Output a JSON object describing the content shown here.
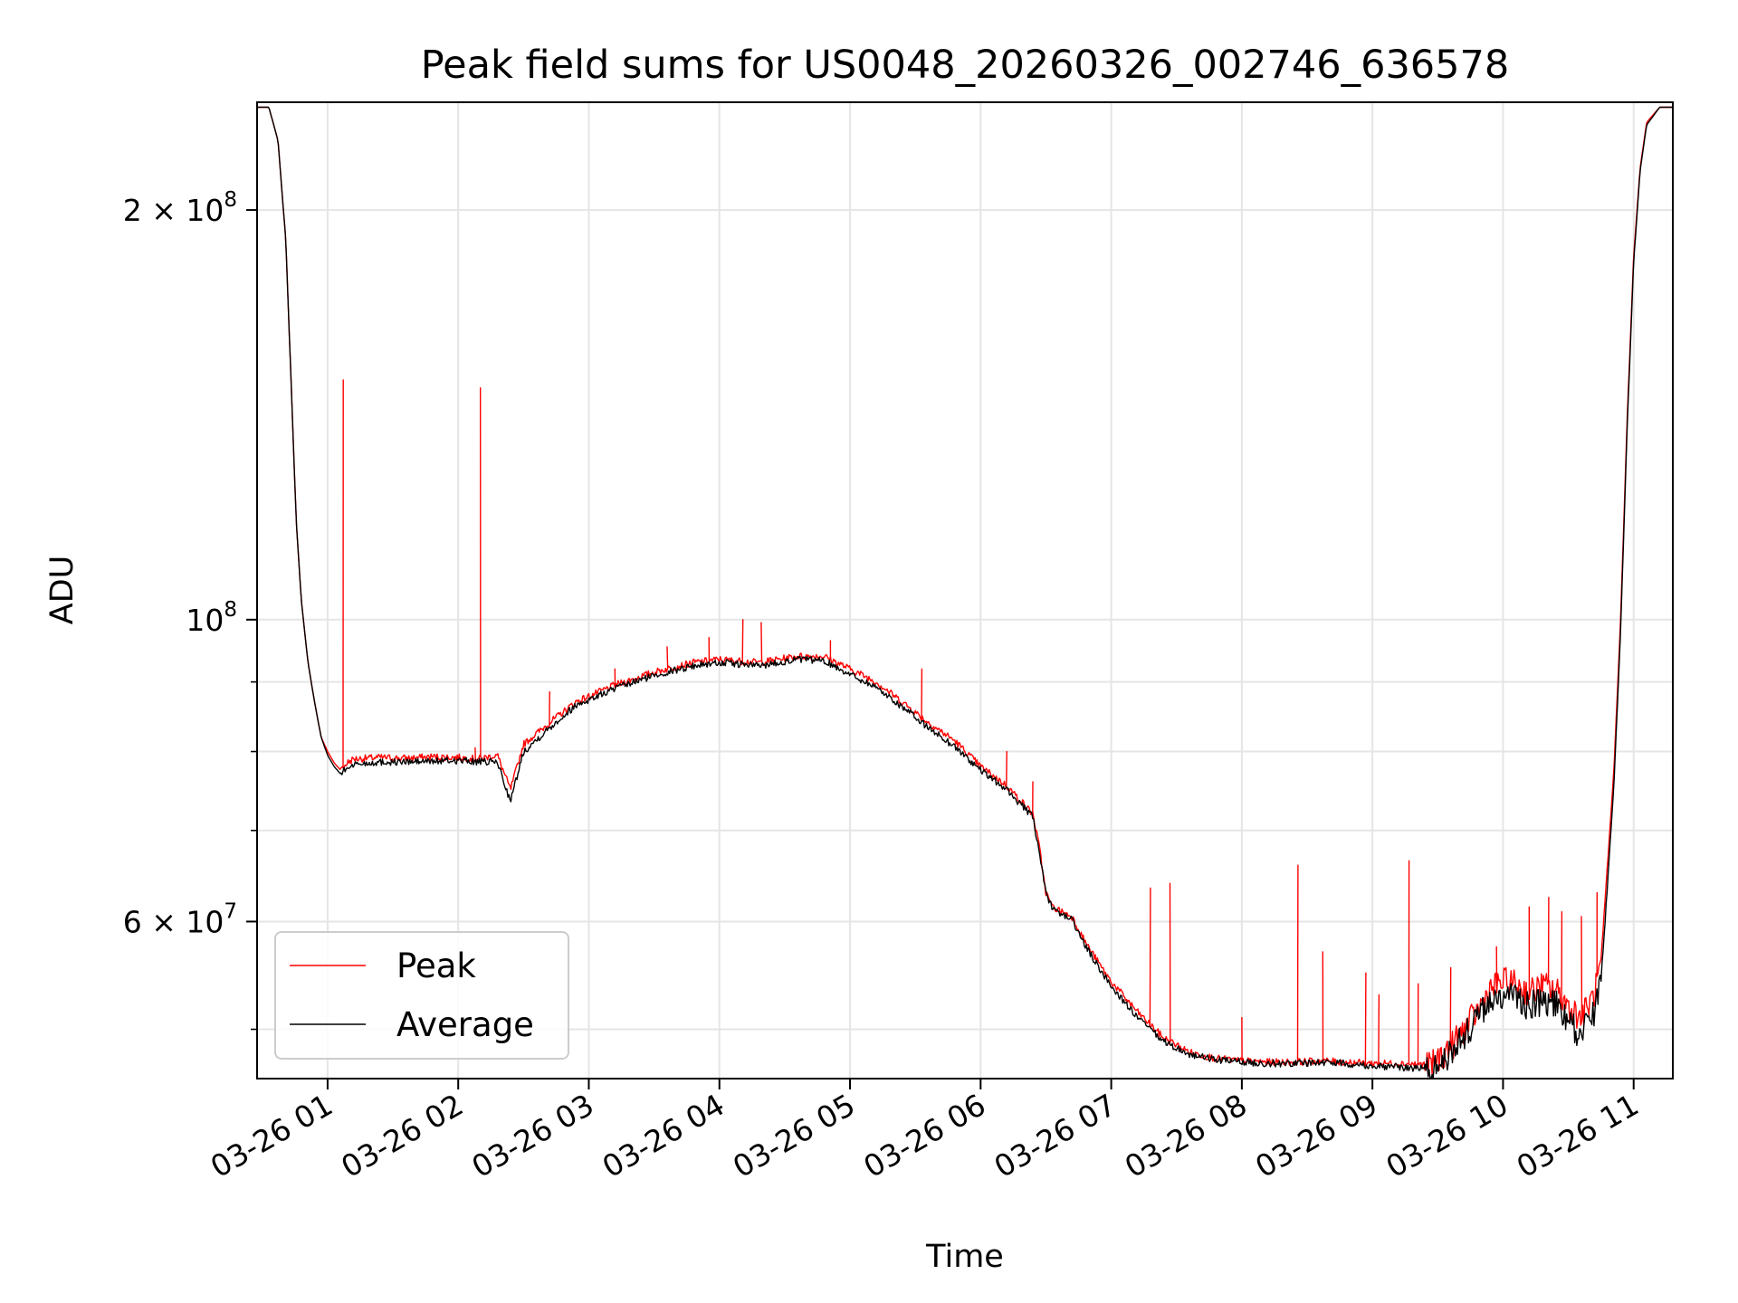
{
  "chart_data": {
    "type": "line",
    "title": "Peak field sums for US0048_20260326_002746_636578",
    "xlabel": "Time",
    "ylabel": "ADU",
    "yscale": "log",
    "ylim": [
      46000000,
      240000000
    ],
    "xlim_hours": [
      0.46,
      11.3
    ],
    "grid": true,
    "legend_location": "lower-left",
    "x_ticks": [
      {
        "hour": 1,
        "label": "03-26 01"
      },
      {
        "hour": 2,
        "label": "03-26 02"
      },
      {
        "hour": 3,
        "label": "03-26 03"
      },
      {
        "hour": 4,
        "label": "03-26 04"
      },
      {
        "hour": 5,
        "label": "03-26 05"
      },
      {
        "hour": 6,
        "label": "03-26 06"
      },
      {
        "hour": 7,
        "label": "03-26 07"
      },
      {
        "hour": 8,
        "label": "03-26 08"
      },
      {
        "hour": 9,
        "label": "03-26 09"
      },
      {
        "hour": 10,
        "label": "03-26 10"
      },
      {
        "hour": 11,
        "label": "03-26 11"
      }
    ],
    "y_major_ticks": [
      {
        "value": 60000000,
        "mantissa": "6",
        "exp": "7",
        "has_mantissa": true
      },
      {
        "value": 100000000,
        "mantissa": "",
        "exp": "8",
        "has_mantissa": false
      },
      {
        "value": 200000000,
        "mantissa": "2",
        "exp": "8",
        "has_mantissa": true
      }
    ],
    "y_minor_ticks": [
      50000000,
      70000000,
      80000000,
      90000000,
      300000000
    ],
    "series": [
      {
        "name": "Peak",
        "color": "#ff0000",
        "x_hours": [
          0.46,
          0.55,
          0.62,
          0.68,
          0.72,
          0.76,
          0.8,
          0.85,
          0.9,
          0.95,
          1.0,
          1.05,
          1.1,
          1.15,
          1.2,
          1.4,
          1.6,
          1.8,
          2.0,
          2.15,
          2.3,
          2.4,
          2.5,
          2.7,
          2.9,
          3.2,
          3.5,
          3.8,
          4.0,
          4.3,
          4.6,
          4.8,
          5.0,
          5.2,
          5.4,
          5.6,
          5.8,
          6.0,
          6.2,
          6.4,
          6.45,
          6.5,
          6.55,
          6.7,
          6.8,
          6.9,
          7.0,
          7.2,
          7.4,
          7.6,
          7.8,
          8.0,
          8.2,
          8.4,
          8.6,
          8.8,
          9.0,
          9.2,
          9.4,
          9.45,
          9.5,
          9.6,
          9.7,
          9.8,
          9.9,
          10.0,
          10.1,
          10.2,
          10.3,
          10.4,
          10.5,
          10.6,
          10.7,
          10.75,
          10.8,
          10.85,
          10.9,
          10.95,
          11.0,
          11.05,
          11.1,
          11.2,
          11.3
        ],
        "y": [
          238000000,
          238000000,
          225000000,
          190000000,
          150000000,
          118000000,
          103000000,
          93000000,
          87000000,
          82000000,
          80000000,
          78500000,
          77500000,
          78500000,
          79000000,
          79200000,
          79100000,
          79300000,
          79200000,
          79000000,
          79500000,
          75000000,
          81000000,
          84000000,
          87000000,
          89500000,
          91500000,
          93000000,
          93500000,
          93000000,
          94000000,
          94000000,
          92000000,
          90000000,
          87000000,
          84000000,
          81500000,
          78000000,
          75500000,
          72000000,
          68000000,
          63000000,
          61500000,
          60500000,
          58000000,
          56000000,
          54200000,
          51500000,
          49300000,
          48100000,
          47600000,
          47400000,
          47300000,
          47300000,
          47400000,
          47300000,
          47200000,
          47200000,
          47100000,
          47000000,
          47500000,
          48500000,
          50000000,
          51500000,
          53500000,
          54200000,
          54000000,
          53200000,
          53800000,
          53500000,
          52000000,
          51000000,
          53000000,
          56000000,
          66000000,
          78000000,
          100000000,
          140000000,
          185000000,
          215000000,
          232000000,
          238000000,
          238000000
        ],
        "spikes": [
          [
            1.12,
            150000000
          ],
          [
            2.17,
            148000000
          ],
          [
            2.13,
            80500000
          ],
          [
            2.7,
            88500000
          ],
          [
            3.2,
            92000000
          ],
          [
            3.6,
            95500000
          ],
          [
            3.92,
            97000000
          ],
          [
            4.18,
            100000000
          ],
          [
            4.32,
            99500000
          ],
          [
            4.85,
            96500000
          ],
          [
            5.55,
            92000000
          ],
          [
            6.2,
            80000000
          ],
          [
            6.4,
            76000000
          ],
          [
            7.3,
            63500000
          ],
          [
            7.45,
            64000000
          ],
          [
            8.0,
            51000000
          ],
          [
            8.43,
            66000000
          ],
          [
            8.62,
            57000000
          ],
          [
            8.95,
            55000000
          ],
          [
            9.05,
            53000000
          ],
          [
            9.28,
            66500000
          ],
          [
            9.35,
            54000000
          ],
          [
            9.6,
            55500000
          ],
          [
            9.95,
            57500000
          ],
          [
            10.2,
            61500000
          ],
          [
            10.35,
            62500000
          ],
          [
            10.45,
            61000000
          ],
          [
            10.6,
            60500000
          ],
          [
            10.72,
            63000000
          ]
        ]
      },
      {
        "name": "Average",
        "color": "#000000",
        "x_hours": [
          0.46,
          0.55,
          0.62,
          0.68,
          0.72,
          0.76,
          0.8,
          0.85,
          0.9,
          0.95,
          1.0,
          1.05,
          1.1,
          1.15,
          1.2,
          1.4,
          1.6,
          1.8,
          2.0,
          2.15,
          2.3,
          2.4,
          2.5,
          2.7,
          2.9,
          3.2,
          3.5,
          3.8,
          4.0,
          4.3,
          4.6,
          4.8,
          5.0,
          5.2,
          5.4,
          5.6,
          5.8,
          6.0,
          6.2,
          6.4,
          6.45,
          6.5,
          6.55,
          6.7,
          6.8,
          6.9,
          7.0,
          7.2,
          7.4,
          7.6,
          7.8,
          8.0,
          8.2,
          8.4,
          8.6,
          8.8,
          9.0,
          9.2,
          9.4,
          9.45,
          9.5,
          9.6,
          9.7,
          9.8,
          9.9,
          10.0,
          10.1,
          10.2,
          10.3,
          10.4,
          10.5,
          10.6,
          10.7,
          10.75,
          10.8,
          10.85,
          10.9,
          10.95,
          11.0,
          11.05,
          11.1,
          11.2,
          11.3
        ],
        "y": [
          238000000,
          238000000,
          225000000,
          190000000,
          150000000,
          118000000,
          103000000,
          93000000,
          87000000,
          82000000,
          79500000,
          78000000,
          77000000,
          77800000,
          78300000,
          78600000,
          78600000,
          78700000,
          78800000,
          78600000,
          78600000,
          73500000,
          80000000,
          83300000,
          86500000,
          89000000,
          91000000,
          92500000,
          93000000,
          92500000,
          93500000,
          93300000,
          91200000,
          89200000,
          86300000,
          83300000,
          80700000,
          77500000,
          75000000,
          71600000,
          67500000,
          62800000,
          61300000,
          60200000,
          57600000,
          55600000,
          53800000,
          51000000,
          49000000,
          47900000,
          47500000,
          47300000,
          47200000,
          47200000,
          47300000,
          47200000,
          47000000,
          46900000,
          46800000,
          46700000,
          47000000,
          48000000,
          49500000,
          50800000,
          52500000,
          52800000,
          52800000,
          52000000,
          52500000,
          52300000,
          50500000,
          49500000,
          51500000,
          54500000,
          64000000,
          76000000,
          98000000,
          138000000,
          183000000,
          214000000,
          231000000,
          238000000,
          238000000
        ]
      }
    ]
  }
}
